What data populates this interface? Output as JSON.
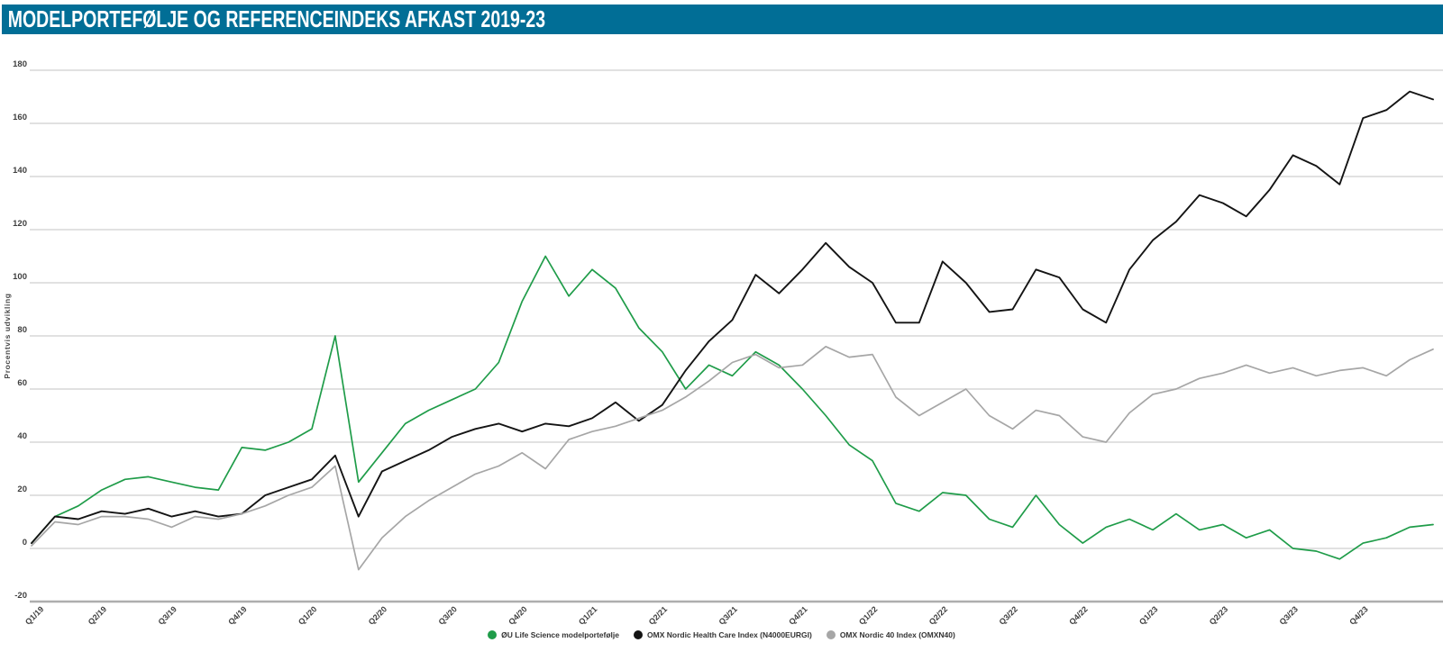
{
  "title": "MODELPORTEFØLJE OG REFERENCEINDEKS AFKAST 2019-23",
  "colors": {
    "title_bar_bg": "#016e96",
    "title_text": "#ffffff",
    "grid": "#d7d7d7",
    "axis_bottom_line": "#aeaeae",
    "tick_text": "#3f3f3f",
    "series_green": "#1f9c49",
    "series_black": "#141414",
    "series_gray": "#a6a6a6"
  },
  "y_axis": {
    "title": "Procentvis udvikling",
    "min": -20,
    "max": 180,
    "step": 20,
    "tick_labels": [
      "180",
      "160",
      "140",
      "120",
      "100",
      "80",
      "60",
      "40",
      "20",
      "0",
      "-20"
    ]
  },
  "x_axis": {
    "tick_labels": [
      "Q1/19",
      "Q2/19",
      "Q3/19",
      "Q4/19",
      "Q1/20",
      "Q2/20",
      "Q3/20",
      "Q4/20",
      "Q1/21",
      "Q2/21",
      "Q3/21",
      "Q4/21",
      "Q1/22",
      "Q2/22",
      "Q3/22",
      "Q4/22",
      "Q1/23",
      "Q2/23",
      "Q3/23",
      "Q4/23"
    ]
  },
  "legend": {
    "items": [
      {
        "label": "ØU Life Science modelportefølje",
        "color": "#1f9c49"
      },
      {
        "label": "OMX Nordic Health Care Index (N4000EURGI)",
        "color": "#141414"
      },
      {
        "label": "OMX Nordic 40 Index (OMXN40)",
        "color": "#a6a6a6"
      }
    ]
  },
  "chart_data": {
    "type": "line",
    "title": "MODELPORTEFØLJE OG REFERENCEINDEKS AFKAST 2019-23",
    "xlabel": "",
    "ylabel": "Procentvis udvikling",
    "ylim": [
      -20,
      180
    ],
    "grid": true,
    "legend_position": "bottom-center",
    "x_description": "Monthly samples, Jan 2019 through Dec 2023 (61 points, index 0 = Jan 2019). Quarterly axis tick labels Q1/19..Q4/23.",
    "categories_quarterly": [
      "Q1/19",
      "Q2/19",
      "Q3/19",
      "Q4/19",
      "Q1/20",
      "Q2/20",
      "Q3/20",
      "Q4/20",
      "Q1/21",
      "Q2/21",
      "Q3/21",
      "Q4/21",
      "Q1/22",
      "Q2/22",
      "Q3/22",
      "Q4/22",
      "Q1/23",
      "Q2/23",
      "Q3/23",
      "Q4/23"
    ],
    "series": [
      {
        "name": "ØU Life Science modelportefølje",
        "color": "#1f9c49",
        "values": [
          2,
          12,
          16,
          22,
          26,
          27,
          25,
          23,
          22,
          38,
          37,
          40,
          45,
          80,
          25,
          36,
          47,
          52,
          56,
          60,
          70,
          93,
          110,
          95,
          105,
          98,
          83,
          74,
          60,
          69,
          65,
          74,
          69,
          60,
          50,
          39,
          33,
          17,
          14,
          21,
          20,
          11,
          8,
          20,
          9,
          2,
          8,
          11,
          7,
          13,
          7,
          9,
          4,
          7,
          0,
          -1,
          -4,
          2,
          4,
          8,
          9
        ]
      },
      {
        "name": "OMX Nordic Health Care Index (N4000EURGI)",
        "color": "#141414",
        "values": [
          2,
          12,
          11,
          14,
          13,
          15,
          12,
          14,
          12,
          13,
          20,
          23,
          26,
          35,
          12,
          29,
          33,
          37,
          42,
          45,
          47,
          44,
          47,
          46,
          49,
          55,
          48,
          54,
          67,
          78,
          86,
          103,
          96,
          105,
          115,
          106,
          100,
          85,
          85,
          108,
          100,
          89,
          90,
          105,
          102,
          90,
          85,
          105,
          116,
          123,
          133,
          130,
          125,
          135,
          148,
          144,
          137,
          162,
          165,
          172,
          169
        ]
      },
      {
        "name": "OMX Nordic 40 Index (OMXN40)",
        "color": "#a6a6a6",
        "values": [
          1,
          10,
          9,
          12,
          12,
          11,
          8,
          12,
          11,
          13,
          16,
          20,
          23,
          31,
          -8,
          4,
          12,
          18,
          23,
          28,
          31,
          36,
          30,
          41,
          44,
          46,
          49,
          52,
          57,
          63,
          70,
          73,
          68,
          69,
          76,
          72,
          73,
          57,
          50,
          55,
          60,
          50,
          45,
          52,
          50,
          42,
          40,
          51,
          58,
          60,
          64,
          66,
          69,
          66,
          68,
          65,
          67,
          68,
          65,
          71,
          75
        ]
      }
    ]
  }
}
